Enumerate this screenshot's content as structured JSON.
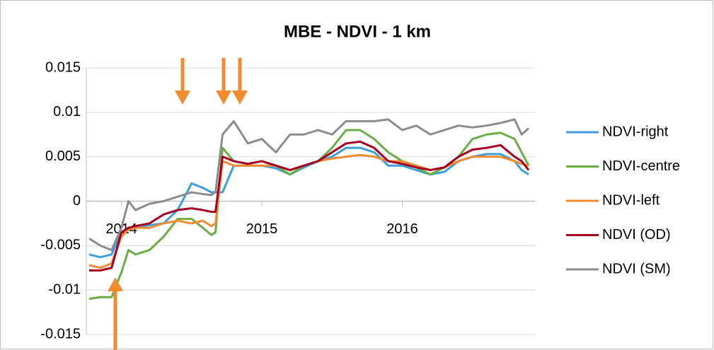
{
  "chart_data": {
    "type": "line",
    "title": "MBE - NDVI - 1 km",
    "x": [
      2013.77,
      2013.85,
      2013.93,
      2014.0,
      2014.05,
      2014.1,
      2014.2,
      2014.3,
      2014.4,
      2014.5,
      2014.58,
      2014.64,
      2014.67,
      2014.72,
      2014.8,
      2014.9,
      2015.0,
      2015.1,
      2015.2,
      2015.3,
      2015.4,
      2015.5,
      2015.6,
      2015.7,
      2015.8,
      2015.9,
      2016.0,
      2016.1,
      2016.2,
      2016.3,
      2016.4,
      2016.5,
      2016.6,
      2016.7,
      2016.8,
      2016.85,
      2016.9
    ],
    "series": [
      {
        "name": "NDVI-right",
        "color": "#3a9fdb",
        "values": [
          -0.006,
          -0.0063,
          -0.006,
          -0.0035,
          -0.003,
          -0.003,
          -0.0027,
          -0.0025,
          -0.001,
          0.002,
          0.0015,
          0.001,
          0.001,
          0.001,
          0.004,
          0.004,
          0.004,
          0.0037,
          0.003,
          0.0038,
          0.0045,
          0.005,
          0.006,
          0.006,
          0.0055,
          0.004,
          0.004,
          0.0035,
          0.003,
          0.0033,
          0.0045,
          0.005,
          0.0053,
          0.0053,
          0.0045,
          0.0035,
          0.003
        ]
      },
      {
        "name": "NDVI-centre",
        "color": "#6aad45",
        "values": [
          -0.011,
          -0.0108,
          -0.0108,
          -0.008,
          -0.0055,
          -0.006,
          -0.0055,
          -0.004,
          -0.002,
          -0.002,
          -0.003,
          -0.0038,
          -0.0035,
          0.006,
          0.0045,
          0.0042,
          0.0045,
          0.004,
          0.003,
          0.004,
          0.0045,
          0.006,
          0.008,
          0.008,
          0.007,
          0.0055,
          0.0045,
          0.0038,
          0.003,
          0.0038,
          0.005,
          0.007,
          0.0075,
          0.0077,
          0.007,
          0.0055,
          0.004
        ]
      },
      {
        "name": "NDVI-left",
        "color": "#f28a30",
        "values": [
          -0.0072,
          -0.0075,
          -0.007,
          -0.004,
          -0.0032,
          -0.003,
          -0.003,
          -0.0025,
          -0.0022,
          -0.0025,
          -0.0022,
          -0.0028,
          -0.0025,
          0.0045,
          0.004,
          0.004,
          0.004,
          0.004,
          0.0035,
          0.004,
          0.0045,
          0.0048,
          0.005,
          0.0052,
          0.005,
          0.0045,
          0.0045,
          0.004,
          0.0035,
          0.0038,
          0.0045,
          0.005,
          0.005,
          0.005,
          0.0045,
          0.0042,
          0.004
        ]
      },
      {
        "name": "NDVI (OD)",
        "color": "#a50021",
        "values": [
          -0.0078,
          -0.0078,
          -0.0075,
          -0.0035,
          -0.003,
          -0.0028,
          -0.0025,
          -0.0015,
          -0.001,
          -0.0008,
          -0.001,
          -0.0012,
          -0.0012,
          0.005,
          0.0045,
          0.0042,
          0.0045,
          0.004,
          0.0035,
          0.004,
          0.0045,
          0.0055,
          0.0065,
          0.0067,
          0.006,
          0.0045,
          0.0042,
          0.0038,
          0.0035,
          0.0038,
          0.005,
          0.0058,
          0.006,
          0.0063,
          0.005,
          0.0045,
          0.0035
        ]
      },
      {
        "name": "NDVI (SM)",
        "color": "#8c8c8c",
        "values": [
          -0.0042,
          -0.005,
          -0.0055,
          -0.003,
          0,
          -0.001,
          -0.0003,
          0,
          0.0005,
          0.001,
          0.0008,
          0.0007,
          0.001,
          0.0075,
          0.009,
          0.0065,
          0.007,
          0.0055,
          0.0075,
          0.0075,
          0.008,
          0.0075,
          0.009,
          0.009,
          0.009,
          0.0092,
          0.008,
          0.0085,
          0.0075,
          0.008,
          0.0085,
          0.0083,
          0.0085,
          0.0088,
          0.0092,
          0.0075,
          0.0082
        ]
      }
    ],
    "xlim": [
      2013.75,
      2016.95
    ],
    "xticks": [
      2014,
      2015,
      2016
    ],
    "ylim": [
      -0.015,
      0.015
    ],
    "yticks": [
      0.015,
      0.01,
      0.005,
      0,
      -0.005,
      -0.01,
      -0.015
    ],
    "grid": true,
    "legend": "right"
  }
}
